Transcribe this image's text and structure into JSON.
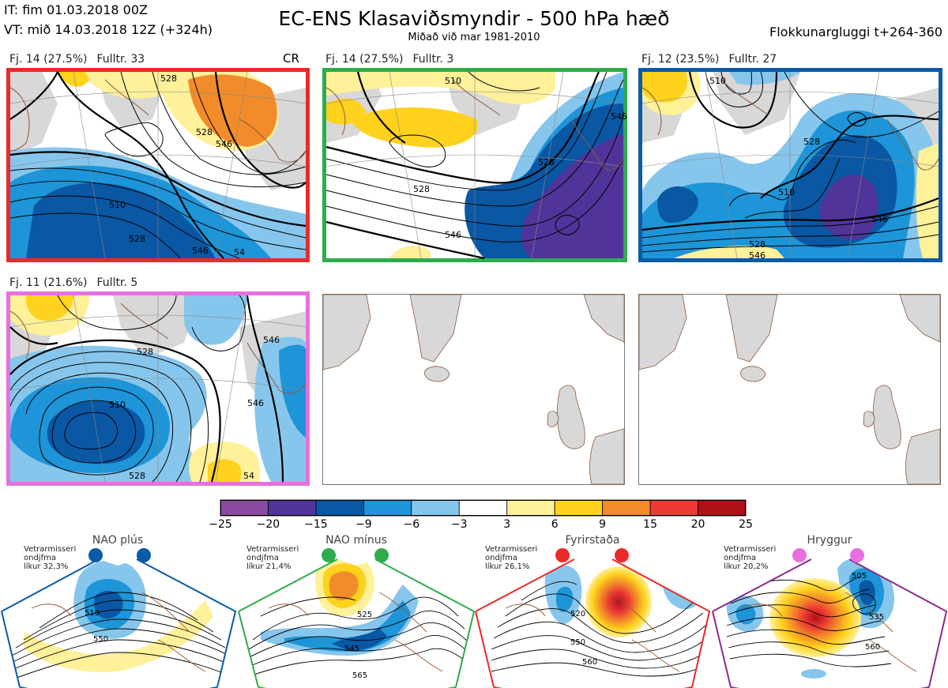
{
  "header": {
    "it": "IT: fim 01.03.2018 00Z",
    "vt": "VT: mið 14.03.2018 12Z  (+324h)",
    "title": "EC-ENS Klasaviðsmyndir - 500 hPa hæð",
    "subtitle": "Miðað við mar 1981-2010",
    "window": "Flokkunargluggi t+264-360"
  },
  "panels": [
    {
      "label": "Fj. 14 (27.5%)",
      "members": "Fulltr. 33",
      "tag": "CR",
      "border": "#ea2a2a",
      "contour_labels": [
        "528",
        "510",
        "528",
        "528",
        "546",
        "546",
        "54"
      ]
    },
    {
      "label": "Fj. 14 (27.5%)",
      "members": "Fulltr. 3",
      "border": "#2eab4c",
      "contour_labels": [
        "510",
        "528",
        "528",
        "546",
        "546"
      ]
    },
    {
      "label": "Fj. 12 (23.5%)",
      "members": "Fulltr. 27",
      "border": "#0a5aa8",
      "contour_labels": [
        "510",
        "510",
        "528",
        "528",
        "546",
        "546"
      ]
    },
    {
      "label": "Fj. 11 (21.6%)",
      "members": "Fulltr. 5",
      "border": "#e86fe0",
      "contour_labels": [
        "528",
        "510",
        "528",
        "546",
        "546",
        "54"
      ]
    }
  ],
  "colorbar": {
    "ticks": [
      "−25",
      "−20",
      "−15",
      "−9",
      "−6",
      "−3",
      "3",
      "6",
      "9",
      "15",
      "20",
      "25"
    ],
    "colors": [
      "#8a4a9f",
      "#51349a",
      "#0a57a4",
      "#1d95d8",
      "#87c6ec",
      "#ffffff",
      "#fff09a",
      "#ffd21d",
      "#f28c2a",
      "#ec3a33",
      "#b01018"
    ]
  },
  "regimes": [
    {
      "name": "NAO plús",
      "note": "Vetrarmisseri\nondjfma",
      "prob": "líkur 32,3%",
      "color": "#0a5aa8",
      "contour_labels": [
        "510",
        "550"
      ]
    },
    {
      "name": "NAO mínus",
      "note": "Vetrarmisseri\nondjfma",
      "prob": "líkur 21,4%",
      "color": "#2eab4c",
      "contour_labels": [
        "525",
        "545",
        "565"
      ]
    },
    {
      "name": "Fyrirstaða",
      "note": "Vetrarmisseri\nondjfma",
      "prob": "líkur 26,1%",
      "color": "#ea2a2a",
      "contour_labels": [
        "520",
        "550",
        "560"
      ]
    },
    {
      "name": "Hryggur",
      "note": "Vetrarmisseri\nondjfma",
      "prob": "líkur 20,2%",
      "color": "#e86fe0",
      "contour_labels": [
        "505",
        "535",
        "560"
      ]
    }
  ]
}
